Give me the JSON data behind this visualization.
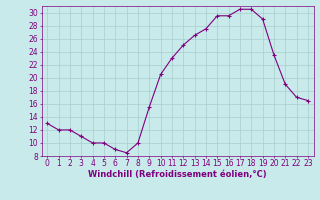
{
  "x": [
    0,
    1,
    2,
    3,
    4,
    5,
    6,
    7,
    8,
    9,
    10,
    11,
    12,
    13,
    14,
    15,
    16,
    17,
    18,
    19,
    20,
    21,
    22,
    23
  ],
  "y": [
    13,
    12,
    12,
    11,
    10,
    10,
    9,
    8.5,
    10,
    15.5,
    20.5,
    23,
    25,
    26.5,
    27.5,
    29.5,
    29.5,
    30.5,
    30.5,
    29,
    23.5,
    19,
    17,
    16.5
  ],
  "line_color": "#800080",
  "marker": "+",
  "marker_size": 3,
  "bg_color": "#c8eaea",
  "grid_color": "#a8cece",
  "xlabel": "Windchill (Refroidissement éolien,°C)",
  "xlabel_fontsize": 6.0,
  "tick_fontsize": 5.5,
  "ylim": [
    8,
    31
  ],
  "yticks": [
    8,
    10,
    12,
    14,
    16,
    18,
    20,
    22,
    24,
    26,
    28,
    30
  ],
  "xlim": [
    -0.5,
    23.5
  ],
  "xticks": [
    0,
    1,
    2,
    3,
    4,
    5,
    6,
    7,
    8,
    9,
    10,
    11,
    12,
    13,
    14,
    15,
    16,
    17,
    18,
    19,
    20,
    21,
    22,
    23
  ],
  "line_width": 0.8,
  "axis_color": "#800080",
  "tick_color": "#800080"
}
